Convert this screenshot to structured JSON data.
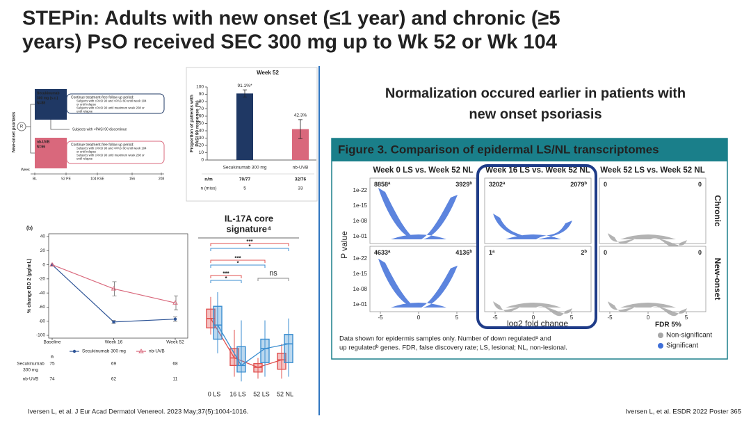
{
  "header": {
    "title_lines": [
      "STEPin: Adults with new onset (≤1 year) and chronic (≥5",
      "years) PsO received SEC 300 mg up to Wk 52 or Wk 104"
    ]
  },
  "design": {
    "population": "New-onset psoriasis",
    "randomization": "R",
    "arms": [
      {
        "name_lines": [
          "Secukinumab",
          "300 mg (s.c.)"
        ],
        "n": "N=88"
      },
      {
        "name_lines": [
          "nb-UVB"
        ],
        "n": "N=66"
      }
    ],
    "followup": {
      "heading": "Continue treatment-free follow up period:",
      "bullets": [
        "Subjects with ≥PASI 90 and <PASI 90 until week 104",
        "or until relapse",
        "Subjects with ≥PASI 90 until maximum week 208 or",
        "until relapse"
      ]
    },
    "discontinue": "Subjects with <PASI 90 discontinue",
    "timeline": {
      "label": "Week",
      "ticks": [
        "BL",
        "52 PE",
        "104 KSE",
        "156",
        "208"
      ]
    }
  },
  "chart_data": [
    {
      "type": "bar",
      "title": "Week 52",
      "ylabel_lines": [
        "Proportion of patients with",
        "PASI 90 response (%)"
      ],
      "categories": [
        "Secukinumab 300 mg",
        "nb-UVB"
      ],
      "values": [
        91.1,
        42.3
      ],
      "value_labels": [
        "91.1%*",
        "42.3%"
      ],
      "errors": [
        5,
        13
      ],
      "colors": [
        "#1f3864",
        "#d9687c"
      ],
      "ylim": [
        0,
        100
      ],
      "yticks": [
        0,
        10,
        20,
        30,
        40,
        50,
        60,
        70,
        80,
        90,
        100
      ],
      "table": [
        {
          "label": "n/m",
          "values": [
            "70/77",
            "32/76"
          ]
        },
        {
          "label": "n (miss)",
          "values": [
            5,
            33
          ]
        }
      ]
    },
    {
      "type": "line",
      "panel_label": "(b)",
      "ylabel": "% change BD 2 (pg/mL)",
      "categories": [
        "Baseline",
        "Week 16",
        "Week 52"
      ],
      "series": [
        {
          "name": "Secukinumab 300 mg",
          "color": "#2f5597",
          "marker": "circle",
          "values": [
            0,
            -81,
            -77
          ],
          "errors": [
            0,
            2,
            3
          ]
        },
        {
          "name": "nb-UVB",
          "color": "#d9687c",
          "marker": "triangle",
          "values": [
            0,
            -34,
            -54
          ],
          "errors": [
            0,
            10,
            10
          ]
        }
      ],
      "ylim": [
        -100,
        40
      ],
      "yticks": [
        -100,
        -80,
        -60,
        -40,
        -20,
        0,
        20,
        40
      ],
      "table": {
        "header": "n",
        "rows": [
          {
            "label_lines": [
              "Secukinumab",
              "300 mg"
            ],
            "values": [
              75,
              69,
              68
            ]
          },
          {
            "label_lines": [
              "nb-UVB"
            ],
            "values": [
              74,
              62,
              11
            ]
          }
        ]
      }
    },
    {
      "type": "box",
      "title_lines": [
        "IL-17A core",
        "signature⁴"
      ],
      "categories": [
        "0 LS",
        "16 LS",
        "52 LS",
        "52 NL"
      ],
      "ylim": [
        0,
        100
      ],
      "series": [
        {
          "color": "#e0514f",
          "boxes": [
            {
              "min": 55,
              "q1": 62,
              "median": 72,
              "q3": 82,
              "max": 95
            },
            {
              "min": 10,
              "q1": 22,
              "median": 30,
              "q3": 40,
              "max": 60
            },
            {
              "min": 8,
              "q1": 15,
              "median": 20,
              "q3": 24,
              "max": 30
            },
            {
              "min": 8,
              "q1": 18,
              "median": 28,
              "q3": 35,
              "max": 45
            }
          ]
        },
        {
          "color": "#3b8ed0",
          "boxes": [
            {
              "min": 35,
              "q1": 50,
              "median": 65,
              "q3": 85,
              "max": 100
            },
            {
              "min": 5,
              "q1": 15,
              "median": 22,
              "q3": 42,
              "max": 70
            },
            {
              "min": 10,
              "q1": 25,
              "median": 40,
              "q3": 50,
              "max": 70
            },
            {
              "min": 10,
              "q1": 25,
              "median": 45,
              "q3": 55,
              "max": 72
            }
          ]
        }
      ],
      "annotations": [
        {
          "label": "***",
          "from": 0,
          "to": 3,
          "color": "#e0514f"
        },
        {
          "label": "*",
          "from": 0,
          "to": 3,
          "color": "#3b8ed0"
        },
        {
          "label": "***",
          "from": 0,
          "to": 2,
          "color": "#e0514f"
        },
        {
          "label": "*",
          "from": 0,
          "to": 2,
          "color": "#3b8ed0"
        },
        {
          "label": "***",
          "from": 0,
          "to": 1,
          "color": "#e0514f"
        },
        {
          "label": "*",
          "from": 0,
          "to": 1,
          "color": "#3b8ed0"
        },
        {
          "label": "ns",
          "from": 2,
          "to": 3,
          "color": "#888888"
        }
      ]
    }
  ],
  "right_heading": {
    "lines": [
      "Normalization occured earlier in patients with",
      "new onset psoriasis"
    ]
  },
  "figure3": {
    "title": "Figure 3. Comparison of epidermal LS/NL transcriptomes",
    "columns": [
      "Week 0 LS vs. Week 52 NL",
      "Week 16 LS vs. Week 52 NL",
      "Week 52 LS vs. Week 52 NL"
    ],
    "rows": [
      "Chronic",
      "New-onset"
    ],
    "ylabel": "P value",
    "xlabel": "log2 fold change",
    "yticks": [
      "1e-22",
      "1e-15",
      "1e-08",
      "1e-01"
    ],
    "xticks": [
      -5,
      0,
      5
    ],
    "panels": [
      {
        "left": {
          "value": 8858,
          "sup": "a"
        },
        "right": {
          "value": 3929,
          "sup": "b"
        }
      },
      {
        "left": {
          "value": 3202,
          "sup": "a"
        },
        "right": {
          "value": 2079,
          "sup": "b"
        }
      },
      {
        "left": {
          "value": 0
        },
        "right": {
          "value": 0
        }
      },
      {
        "left": {
          "value": 4633,
          "sup": "a"
        },
        "right": {
          "value": 4136,
          "sup": "b"
        }
      },
      {
        "left": {
          "value": 1,
          "sup": "a"
        },
        "right": {
          "value": 2,
          "sup": "b"
        }
      },
      {
        "left": {
          "value": 0
        },
        "right": {
          "value": 0
        }
      }
    ],
    "notes": [
      "Data shown for epidermis samples only. Number of down regulatedᵃ and",
      "up regulatedᵇ genes. FDR, false discovery rate; LS, lesional; NL, non-lesional."
    ],
    "legend": {
      "title": "FDR 5%",
      "items": [
        {
          "label": "Non-significant",
          "color": "#a6a6a6"
        },
        {
          "label": "Significant",
          "color": "#3f6fd8"
        }
      ]
    }
  },
  "footer": {
    "left": "Iversen L, et al. J Eur Acad Dermatol Venereol. 2023 May;37(5):1004-1016.",
    "right": "Iversen L, et al. ESDR 2022 Poster 365"
  }
}
